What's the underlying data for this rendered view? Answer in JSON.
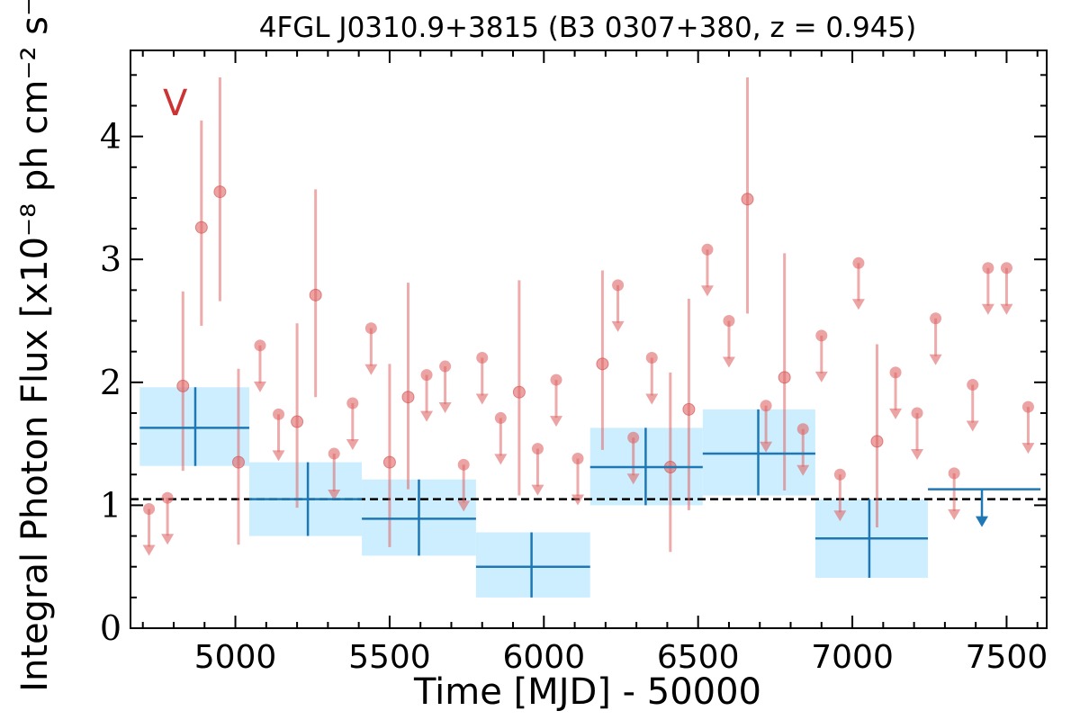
{
  "chart_data": {
    "type": "scatter",
    "title": "4FGL J0310.9+3815 (B3 0307+380, z = 0.945)",
    "xlabel": "Time [MJD] - 50000",
    "ylabel": "Integral Photon Flux [x10⁻⁸ ph cm⁻² s⁻¹]",
    "panel_label": "V",
    "xlim": [
      4660,
      7630
    ],
    "ylim": [
      0,
      4.7
    ],
    "x_ticks": [
      5000,
      5500,
      6000,
      6500,
      7000,
      7500
    ],
    "y_ticks": [
      0,
      1,
      2,
      3,
      4
    ],
    "reference_level": 1.05,
    "grid": false,
    "colors": {
      "short_bins": "#e06666",
      "long_bins": "#1f77b4",
      "long_band": "#cceeff",
      "panel_label": "#cc3333",
      "reference_line": "#000000"
    },
    "series": [
      {
        "kind": "short-bin-detections",
        "points": [
          {
            "x": 4830,
            "y": 1.97,
            "lo": 1.28,
            "hi": 2.74
          },
          {
            "x": 4890,
            "y": 3.26,
            "lo": 2.46,
            "hi": 4.13
          },
          {
            "x": 4950,
            "y": 3.55,
            "lo": 2.66,
            "hi": 4.48
          },
          {
            "x": 5010,
            "y": 1.35,
            "lo": 0.68,
            "hi": 2.11
          },
          {
            "x": 5200,
            "y": 1.68,
            "lo": 0.98,
            "hi": 2.48
          },
          {
            "x": 5260,
            "y": 2.71,
            "lo": 1.88,
            "hi": 3.57
          },
          {
            "x": 5500,
            "y": 1.35,
            "lo": 0.66,
            "hi": 2.15
          },
          {
            "x": 5560,
            "y": 1.88,
            "lo": 1.13,
            "hi": 2.81
          },
          {
            "x": 5920,
            "y": 1.92,
            "lo": 1.08,
            "hi": 2.83
          },
          {
            "x": 6190,
            "y": 2.15,
            "lo": 1.45,
            "hi": 2.91
          },
          {
            "x": 6410,
            "y": 1.31,
            "lo": 0.62,
            "hi": 2.08
          },
          {
            "x": 6470,
            "y": 1.78,
            "lo": 0.96,
            "hi": 2.68
          },
          {
            "x": 6660,
            "y": 3.49,
            "lo": 2.56,
            "hi": 4.48
          },
          {
            "x": 6780,
            "y": 2.04,
            "lo": 1.12,
            "hi": 3.05
          },
          {
            "x": 7080,
            "y": 1.52,
            "lo": 0.82,
            "hi": 2.31
          }
        ]
      },
      {
        "kind": "short-bin-upper-limits",
        "points": [
          {
            "x": 4720,
            "y": 0.97
          },
          {
            "x": 4780,
            "y": 1.06
          },
          {
            "x": 5080,
            "y": 2.3
          },
          {
            "x": 5140,
            "y": 1.74
          },
          {
            "x": 5320,
            "y": 1.42
          },
          {
            "x": 5380,
            "y": 1.83
          },
          {
            "x": 5440,
            "y": 2.44
          },
          {
            "x": 5620,
            "y": 2.06
          },
          {
            "x": 5680,
            "y": 2.13
          },
          {
            "x": 5740,
            "y": 1.33
          },
          {
            "x": 5800,
            "y": 2.2
          },
          {
            "x": 5860,
            "y": 1.71
          },
          {
            "x": 5980,
            "y": 1.46
          },
          {
            "x": 6040,
            "y": 2.02
          },
          {
            "x": 6110,
            "y": 1.38
          },
          {
            "x": 6240,
            "y": 2.79
          },
          {
            "x": 6290,
            "y": 1.55
          },
          {
            "x": 6350,
            "y": 2.2
          },
          {
            "x": 6530,
            "y": 3.08
          },
          {
            "x": 6600,
            "y": 2.5
          },
          {
            "x": 6720,
            "y": 1.81
          },
          {
            "x": 6840,
            "y": 1.62
          },
          {
            "x": 6900,
            "y": 2.38
          },
          {
            "x": 6960,
            "y": 1.25
          },
          {
            "x": 7020,
            "y": 2.97
          },
          {
            "x": 7140,
            "y": 2.08
          },
          {
            "x": 7210,
            "y": 1.75
          },
          {
            "x": 7270,
            "y": 2.52
          },
          {
            "x": 7330,
            "y": 1.26
          },
          {
            "x": 7390,
            "y": 1.98
          },
          {
            "x": 7440,
            "y": 2.93
          },
          {
            "x": 7500,
            "y": 2.93
          },
          {
            "x": 7570,
            "y": 1.8
          }
        ]
      },
      {
        "kind": "long-bin-detections",
        "points": [
          {
            "x": 4870,
            "x_lo": 4690,
            "x_hi": 5045,
            "y": 1.63,
            "lo": 1.32,
            "hi": 1.96
          },
          {
            "x": 5235,
            "x_lo": 5045,
            "x_hi": 5410,
            "y": 1.05,
            "lo": 0.75,
            "hi": 1.35
          },
          {
            "x": 5595,
            "x_lo": 5410,
            "x_hi": 5780,
            "y": 0.89,
            "lo": 0.59,
            "hi": 1.21
          },
          {
            "x": 5960,
            "x_lo": 5780,
            "x_hi": 6150,
            "y": 0.5,
            "lo": 0.25,
            "hi": 0.78
          },
          {
            "x": 6330,
            "x_lo": 6150,
            "x_hi": 6515,
            "y": 1.31,
            "lo": 1.0,
            "hi": 1.63
          },
          {
            "x": 6695,
            "x_lo": 6515,
            "x_hi": 6880,
            "y": 1.42,
            "lo": 1.08,
            "hi": 1.78
          },
          {
            "x": 7055,
            "x_lo": 6880,
            "x_hi": 7245,
            "y": 0.73,
            "lo": 0.41,
            "hi": 1.05
          }
        ]
      },
      {
        "kind": "long-bin-upper-limits",
        "points": [
          {
            "x": 7420,
            "x_lo": 7245,
            "x_hi": 7610,
            "y": 1.13
          }
        ]
      }
    ]
  }
}
